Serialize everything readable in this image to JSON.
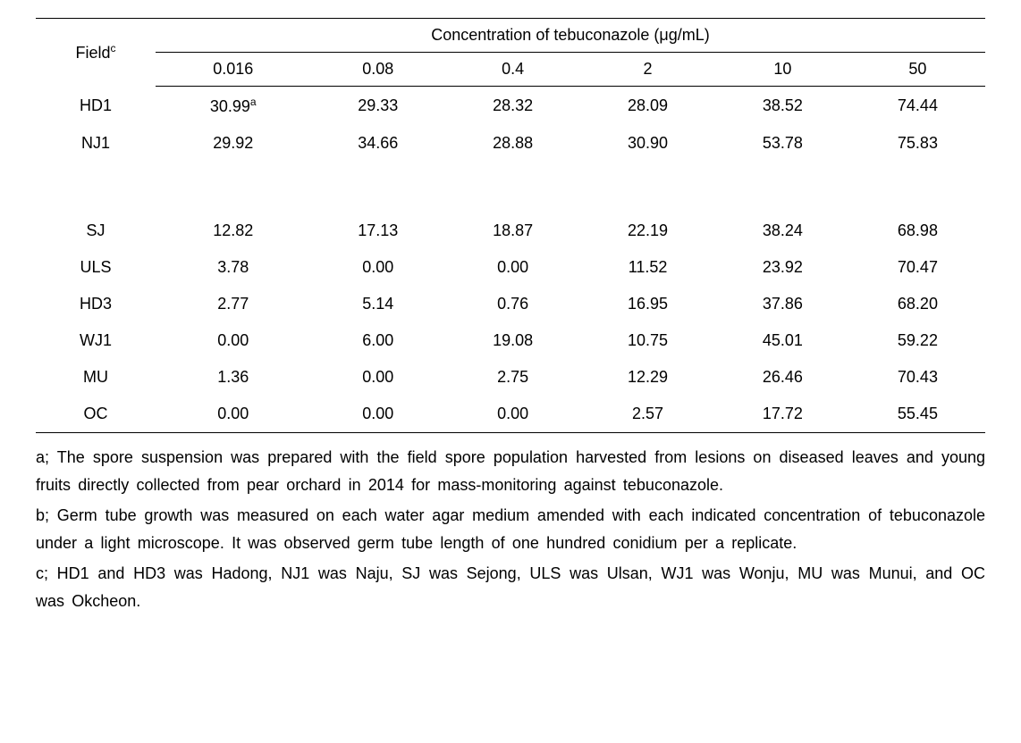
{
  "table": {
    "row_header_label": "Field",
    "row_header_sup": "c",
    "spanner_label": "Concentration of tebuconazole (μg/mL)",
    "columns": [
      "0.016",
      "0.08",
      "0.4",
      "2",
      "10",
      "50"
    ],
    "rows": [
      {
        "field": "HD1",
        "values": [
          "30.99",
          "29.33",
          "28.32",
          "28.09",
          "38.52",
          "74.44"
        ],
        "sup_first": "a"
      },
      {
        "field": "NJ1",
        "values": [
          "29.92",
          "34.66",
          "28.88",
          "30.90",
          "53.78",
          "75.83"
        ]
      },
      {
        "gap": true
      },
      {
        "field": "SJ",
        "values": [
          "12.82",
          "17.13",
          "18.87",
          "22.19",
          "38.24",
          "68.98"
        ]
      },
      {
        "field": "ULS",
        "values": [
          "3.78",
          "0.00",
          "0.00",
          "11.52",
          "23.92",
          "70.47"
        ]
      },
      {
        "field": "HD3",
        "values": [
          "2.77",
          "5.14",
          "0.76",
          "16.95",
          "37.86",
          "68.20"
        ]
      },
      {
        "field": "WJ1",
        "values": [
          "0.00",
          "6.00",
          "19.08",
          "10.75",
          "45.01",
          "59.22"
        ]
      },
      {
        "field": "MU",
        "values": [
          "1.36",
          "0.00",
          "2.75",
          "12.29",
          "26.46",
          "70.43"
        ]
      },
      {
        "field": "OC",
        "values": [
          "0.00",
          "0.00",
          "0.00",
          "2.57",
          "17.72",
          "55.45"
        ]
      }
    ]
  },
  "footnotes": {
    "a": "a; The spore suspension was prepared with the field spore population harvested from lesions on diseased leaves and young fruits directly collected from pear orchard in 2014 for mass-monitoring against tebuconazole.",
    "b": "b; Germ tube growth was measured on each water agar medium amended with each indicated concentration of tebuconazole under a light microscope. It was observed germ tube length of one hundred conidium per a replicate.",
    "c": "c; HD1 and HD3 was Hadong, NJ1 was Naju, SJ was Sejong, ULS was Ulsan, WJ1 was Wonju, MU was Munui, and OC was Okcheon."
  },
  "style": {
    "font_size_body": 18,
    "font_size_sup": 12,
    "border_color": "#000000",
    "background_color": "#ffffff",
    "cell_padding_v": 10,
    "column_widths_pct": [
      14.3,
      14.3,
      14.3,
      14.3,
      14.3,
      14.3,
      14.3
    ]
  }
}
